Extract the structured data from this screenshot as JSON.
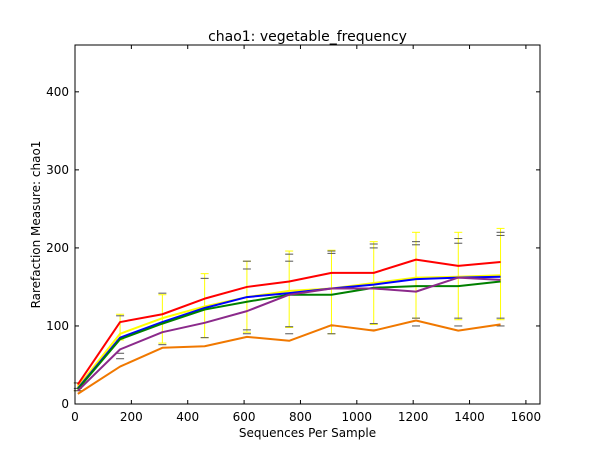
{
  "chart_data": {
    "type": "line",
    "title": "chao1: vegetable_frequency",
    "xlabel": "Sequences Per Sample",
    "ylabel": "Rarefaction Measure: chao1",
    "xlim": [
      0,
      1650
    ],
    "ylim": [
      0,
      460
    ],
    "x_ticks": [
      0,
      200,
      400,
      600,
      800,
      1000,
      1200,
      1400,
      1600
    ],
    "y_ticks": [
      0,
      100,
      200,
      300,
      400
    ],
    "x": [
      10,
      160,
      310,
      460,
      610,
      760,
      910,
      1060,
      1210,
      1360,
      1510
    ],
    "grid": false,
    "legend": "none",
    "series": [
      {
        "color": "#ffff00",
        "values": [
          22,
          90,
          110,
          125,
          137,
          145,
          148,
          155,
          162,
          163,
          165
        ],
        "error_low": [
          17,
          82,
          78,
          85,
          92,
          98,
          90,
          102,
          110,
          108,
          108
        ],
        "error_high": [
          27,
          115,
          140,
          167,
          183,
          196,
          197,
          208,
          220,
          220,
          225
        ]
      },
      {
        "color": "#ff0000",
        "values": [
          25,
          105,
          115,
          135,
          150,
          157,
          168,
          168,
          185,
          177,
          182
        ]
      },
      {
        "color": "#0000ff",
        "values": [
          20,
          85,
          105,
          123,
          137,
          142,
          148,
          153,
          160,
          162,
          163
        ]
      },
      {
        "color": "#008000",
        "values": [
          19,
          83,
          103,
          121,
          131,
          140,
          140,
          149,
          151,
          151,
          157
        ]
      },
      {
        "color": "#8b2a8b",
        "values": [
          17,
          70,
          92,
          104,
          119,
          140,
          148,
          148,
          144,
          162,
          159
        ]
      },
      {
        "color": "#f07800",
        "values": [
          13,
          48,
          72,
          74,
          86,
          81,
          101,
          94,
          107,
          94,
          102
        ]
      }
    ],
    "error_caps": [
      {
        "x": 10,
        "values": [
          27,
          17,
          20
        ]
      },
      {
        "x": 160,
        "values": [
          113,
          58,
          65
        ]
      },
      {
        "x": 310,
        "values": [
          142,
          76
        ]
      },
      {
        "x": 460,
        "values": [
          161,
          85
        ]
      },
      {
        "x": 610,
        "values": [
          183,
          173,
          95,
          90
        ]
      },
      {
        "x": 760,
        "values": [
          192,
          183,
          99,
          90
        ]
      },
      {
        "x": 910,
        "values": [
          196,
          193,
          100,
          90
        ]
      },
      {
        "x": 1060,
        "values": [
          205,
          200,
          103,
          95
        ]
      },
      {
        "x": 1210,
        "values": [
          208,
          204,
          110,
          100
        ]
      },
      {
        "x": 1360,
        "values": [
          212,
          206,
          110,
          100
        ]
      },
      {
        "x": 1510,
        "values": [
          220,
          216,
          110,
          100
        ]
      }
    ]
  }
}
